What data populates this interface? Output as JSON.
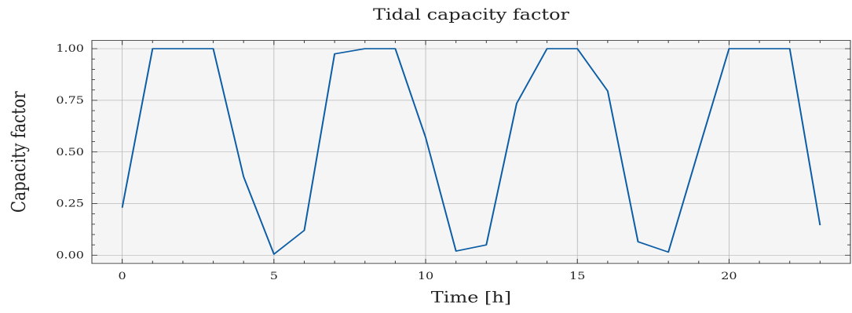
{
  "chart_data": {
    "type": "line",
    "title": "Tidal capacity factor",
    "xlabel": "Time [h]",
    "ylabel": "Capacity factor",
    "xlim": [
      -1,
      24
    ],
    "ylim": [
      -0.04,
      1.04
    ],
    "xticks": [
      0,
      5,
      10,
      15,
      20
    ],
    "xtick_labels": [
      "0",
      "5",
      "10",
      "15",
      "20"
    ],
    "yticks": [
      0,
      0.25,
      0.5,
      0.75,
      1.0
    ],
    "ytick_labels": [
      "0.00",
      "0.25",
      "0.50",
      "0.75",
      "1.00"
    ],
    "grid": true,
    "series": [
      {
        "color": "#0C5DA5",
        "x": [
          0,
          1,
          2,
          3,
          4,
          5,
          6,
          7,
          8,
          9,
          10,
          11,
          12,
          13,
          14,
          15,
          16,
          17,
          18,
          19,
          20,
          21,
          22,
          23
        ],
        "y": [
          0.23,
          1.0,
          1.0,
          1.0,
          0.38,
          0.005,
          0.12,
          0.975,
          1.0,
          1.0,
          0.57,
          0.02,
          0.05,
          0.735,
          1.0,
          1.0,
          0.795,
          0.065,
          0.015,
          0.51,
          1.0,
          1.0,
          1.0,
          0.145
        ]
      }
    ]
  },
  "colors": {
    "plot_background": "#F5F5F5",
    "line": "#0C5DA5"
  }
}
